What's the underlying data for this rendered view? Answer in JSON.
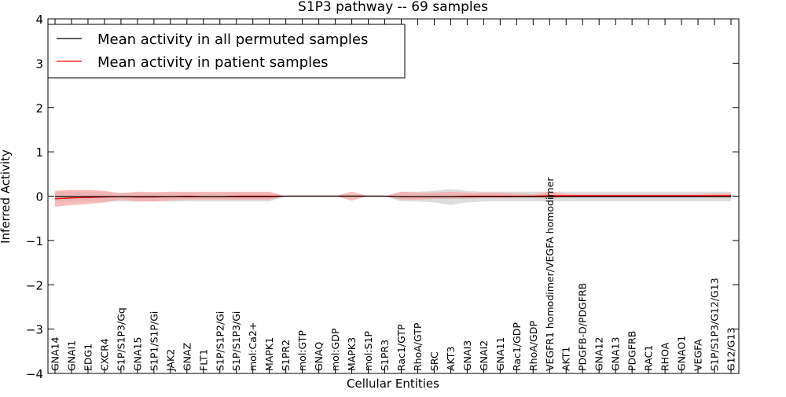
{
  "chart_data": {
    "type": "line",
    "title": "S1P3 pathway -- 69 samples",
    "xlabel": "Cellular Entities",
    "ylabel": "Inferred Activity",
    "ylim": [
      -4,
      4
    ],
    "yticks": [
      {
        "value": -4,
        "label": "−4"
      },
      {
        "value": -3,
        "label": "−3"
      },
      {
        "value": -2,
        "label": "−2"
      },
      {
        "value": -1,
        "label": "−1"
      },
      {
        "value": 0,
        "label": "0"
      },
      {
        "value": 1,
        "label": "1"
      },
      {
        "value": 2,
        "label": "2"
      },
      {
        "value": 3,
        "label": "3"
      },
      {
        "value": 4,
        "label": "4"
      }
    ],
    "categories": [
      "GNA14",
      "GNAI1",
      "EDG1",
      "CXCR4",
      "S1P/S1P3/Gq",
      "GNA15",
      "S1P1/S1P/Gi",
      "JAK2",
      "GNAZ",
      "FLT1",
      "S1P/S1P2/Gi",
      "S1P/S1P3/Gi",
      "mol:Ca2+",
      "MAPK1",
      "S1PR2",
      "mol:GTP",
      "GNAQ",
      "mol:GDP",
      "MAPK3",
      "mol:S1P",
      "S1PR3",
      "Rac1/GTP",
      "RhoA/GTP",
      "SRC",
      "AKT3",
      "GNAI3",
      "GNAI2",
      "GNA11",
      "Rac1/GDP",
      "RhoA/GDP",
      "VEGFR1 homodimer/VEGFA homodimer",
      "AKT1",
      "PDGFB-D/PDGFRB",
      "GNA12",
      "GNA13",
      "PDGFRB",
      "RAC1",
      "RHOA",
      "GNAO1",
      "VEGFA",
      "S1P/S1P3/G12/G13",
      "G12/G13"
    ],
    "legend": {
      "location": "top-left",
      "entries": [
        {
          "label": "Mean activity in all permuted samples",
          "color": "#000000"
        },
        {
          "label": "Mean activity in patient samples",
          "color": "#ff0000"
        }
      ]
    },
    "series": [
      {
        "name": "Mean activity in all permuted samples",
        "color": "#000000",
        "band_color": "#bbbbbb",
        "values": [
          -0.01,
          -0.01,
          -0.01,
          -0.01,
          -0.01,
          -0.01,
          -0.01,
          -0.01,
          -0.01,
          -0.01,
          -0.01,
          -0.01,
          -0.01,
          -0.01,
          0.0,
          0.0,
          0.0,
          0.0,
          0.0,
          0.0,
          0.0,
          -0.01,
          -0.01,
          -0.01,
          -0.01,
          -0.01,
          -0.01,
          -0.01,
          -0.01,
          -0.01,
          -0.01,
          -0.01,
          -0.01,
          -0.01,
          -0.01,
          -0.01,
          -0.01,
          -0.01,
          -0.01,
          -0.01,
          -0.01,
          -0.01
        ],
        "band_upper": [
          0.1,
          0.1,
          0.1,
          0.09,
          0.08,
          0.08,
          0.08,
          0.08,
          0.08,
          0.08,
          0.08,
          0.08,
          0.08,
          0.08,
          0.0,
          0.0,
          0.0,
          0.0,
          0.0,
          0.0,
          0.0,
          0.1,
          0.1,
          0.12,
          0.16,
          0.12,
          0.1,
          0.1,
          0.1,
          0.1,
          0.1,
          0.1,
          0.1,
          0.1,
          0.1,
          0.1,
          0.1,
          0.1,
          0.1,
          0.1,
          0.1,
          0.1
        ],
        "band_lower": [
          -0.12,
          -0.12,
          -0.12,
          -0.12,
          -0.12,
          -0.12,
          -0.12,
          -0.12,
          -0.12,
          -0.12,
          -0.12,
          -0.12,
          -0.12,
          -0.12,
          0.0,
          0.0,
          0.0,
          0.0,
          0.0,
          0.0,
          0.0,
          -0.12,
          -0.12,
          -0.14,
          -0.2,
          -0.14,
          -0.12,
          -0.12,
          -0.12,
          -0.12,
          -0.12,
          -0.12,
          -0.12,
          -0.12,
          -0.12,
          -0.12,
          -0.12,
          -0.12,
          -0.12,
          -0.12,
          -0.12,
          -0.12
        ]
      },
      {
        "name": "Mean activity in patient samples",
        "color": "#ff0000",
        "band_color": "#f4a6a6",
        "values": [
          -0.06,
          -0.04,
          -0.03,
          -0.02,
          -0.01,
          -0.02,
          -0.02,
          -0.01,
          0.0,
          -0.01,
          -0.01,
          0.0,
          0.0,
          0.0,
          0.0,
          0.0,
          0.0,
          0.0,
          0.0,
          0.0,
          0.0,
          -0.01,
          -0.01,
          -0.01,
          -0.01,
          0.0,
          0.0,
          0.0,
          0.0,
          0.0,
          0.01,
          0.01,
          0.01,
          0.01,
          0.01,
          0.01,
          0.01,
          0.01,
          0.01,
          0.01,
          0.01,
          0.01
        ],
        "band_upper": [
          0.12,
          0.14,
          0.14,
          0.12,
          0.06,
          0.1,
          0.09,
          0.1,
          0.1,
          0.1,
          0.1,
          0.1,
          0.1,
          0.1,
          0.0,
          0.0,
          0.0,
          0.0,
          0.1,
          0.0,
          0.0,
          0.1,
          0.08,
          0.08,
          0.1,
          0.08,
          0.08,
          0.08,
          0.06,
          0.04,
          0.1,
          0.05,
          0.04,
          0.04,
          0.04,
          0.04,
          0.04,
          0.04,
          0.04,
          0.04,
          0.06,
          0.06
        ],
        "band_lower": [
          -0.24,
          -0.2,
          -0.18,
          -0.14,
          -0.08,
          -0.12,
          -0.12,
          -0.1,
          -0.08,
          -0.08,
          -0.08,
          -0.08,
          -0.08,
          -0.08,
          0.0,
          0.0,
          0.0,
          0.0,
          -0.1,
          0.0,
          0.0,
          -0.08,
          -0.08,
          -0.06,
          -0.06,
          -0.06,
          -0.04,
          -0.04,
          -0.03,
          -0.03,
          -0.04,
          -0.02,
          -0.02,
          -0.02,
          -0.02,
          -0.02,
          -0.02,
          -0.02,
          -0.02,
          -0.02,
          -0.02,
          -0.02
        ]
      }
    ]
  }
}
